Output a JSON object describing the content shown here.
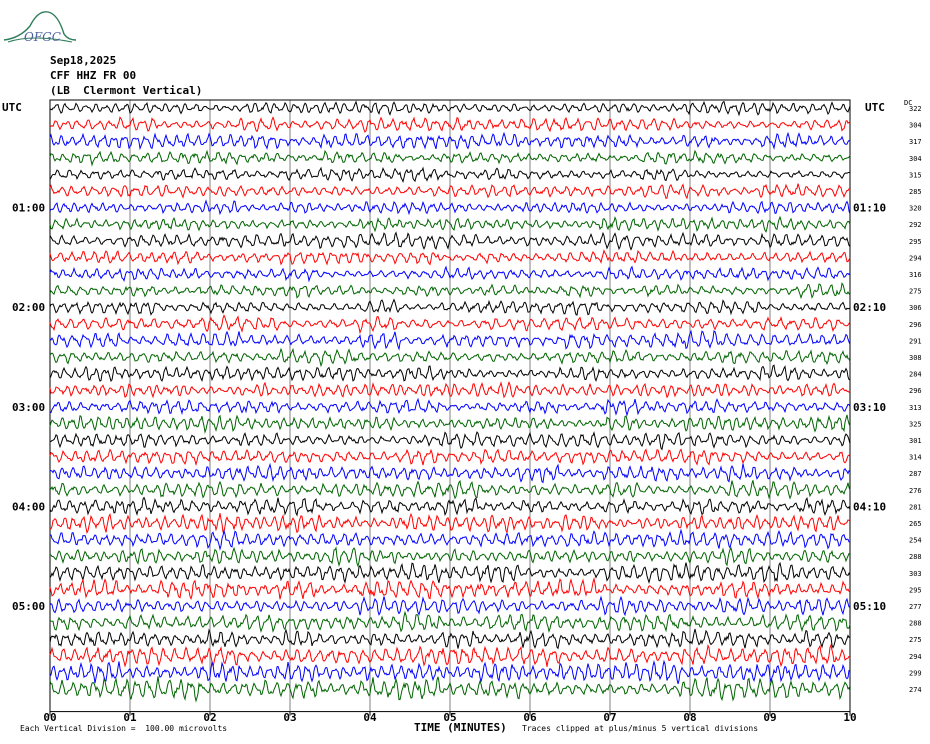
{
  "logo": {
    "text": "OFGC",
    "color": "#2e7d5b",
    "text_color": "#4a5fa0"
  },
  "header": {
    "date": "Sep18,2025",
    "station": "CFF HHZ FR 00",
    "location": "(LB  Clermont Vertical)"
  },
  "utc_left": "UTC",
  "utc_right": "UTC",
  "dc_label": "DC",
  "footer": {
    "scale": "Each Vertical Division =  100.00 microvolts",
    "clip": "Traces clipped at plus/minus 5 vertical divisions",
    "xlabel": "TIME (MINUTES)"
  },
  "chart_data": {
    "type": "line",
    "title": "",
    "xlabel": "TIME (MINUTES)",
    "ylabel": "",
    "xlim": [
      0,
      10
    ],
    "x_ticks": [
      "00",
      "01",
      "02",
      "03",
      "04",
      "05",
      "06",
      "07",
      "08",
      "09",
      "10"
    ],
    "trace_colors": [
      "#000000",
      "#ff0000",
      "#0000ff",
      "#006400"
    ],
    "left_time_labels": [
      {
        "row": 6,
        "label": "01:00"
      },
      {
        "row": 12,
        "label": "02:00"
      },
      {
        "row": 18,
        "label": "03:00"
      },
      {
        "row": 24,
        "label": "04:00"
      },
      {
        "row": 30,
        "label": "05:00"
      }
    ],
    "right_time_labels": [
      {
        "row": 6,
        "label": "01:10"
      },
      {
        "row": 12,
        "label": "02:10"
      },
      {
        "row": 18,
        "label": "03:10"
      },
      {
        "row": 24,
        "label": "04:10"
      },
      {
        "row": 30,
        "label": "05:10"
      }
    ],
    "dc_offsets": [
      322,
      304,
      317,
      304,
      315,
      285,
      320,
      292,
      295,
      294,
      316,
      275,
      306,
      296,
      291,
      308,
      284,
      296,
      313,
      325,
      301,
      314,
      287,
      276,
      281,
      265,
      254,
      288,
      303,
      295,
      277,
      288,
      275,
      294,
      299,
      274
    ],
    "noise_levels": [
      0.7,
      0.7,
      0.8,
      0.7,
      0.75,
      0.75,
      0.75,
      0.75,
      0.8,
      0.75,
      0.7,
      0.75,
      0.75,
      0.85,
      0.9,
      0.8,
      0.8,
      0.8,
      0.8,
      0.85,
      0.9,
      0.85,
      0.9,
      0.9,
      0.95,
      0.95,
      0.95,
      0.95,
      1.0,
      1.0,
      1.0,
      1.0,
      1.0,
      1.05,
      1.1,
      1.15
    ]
  }
}
